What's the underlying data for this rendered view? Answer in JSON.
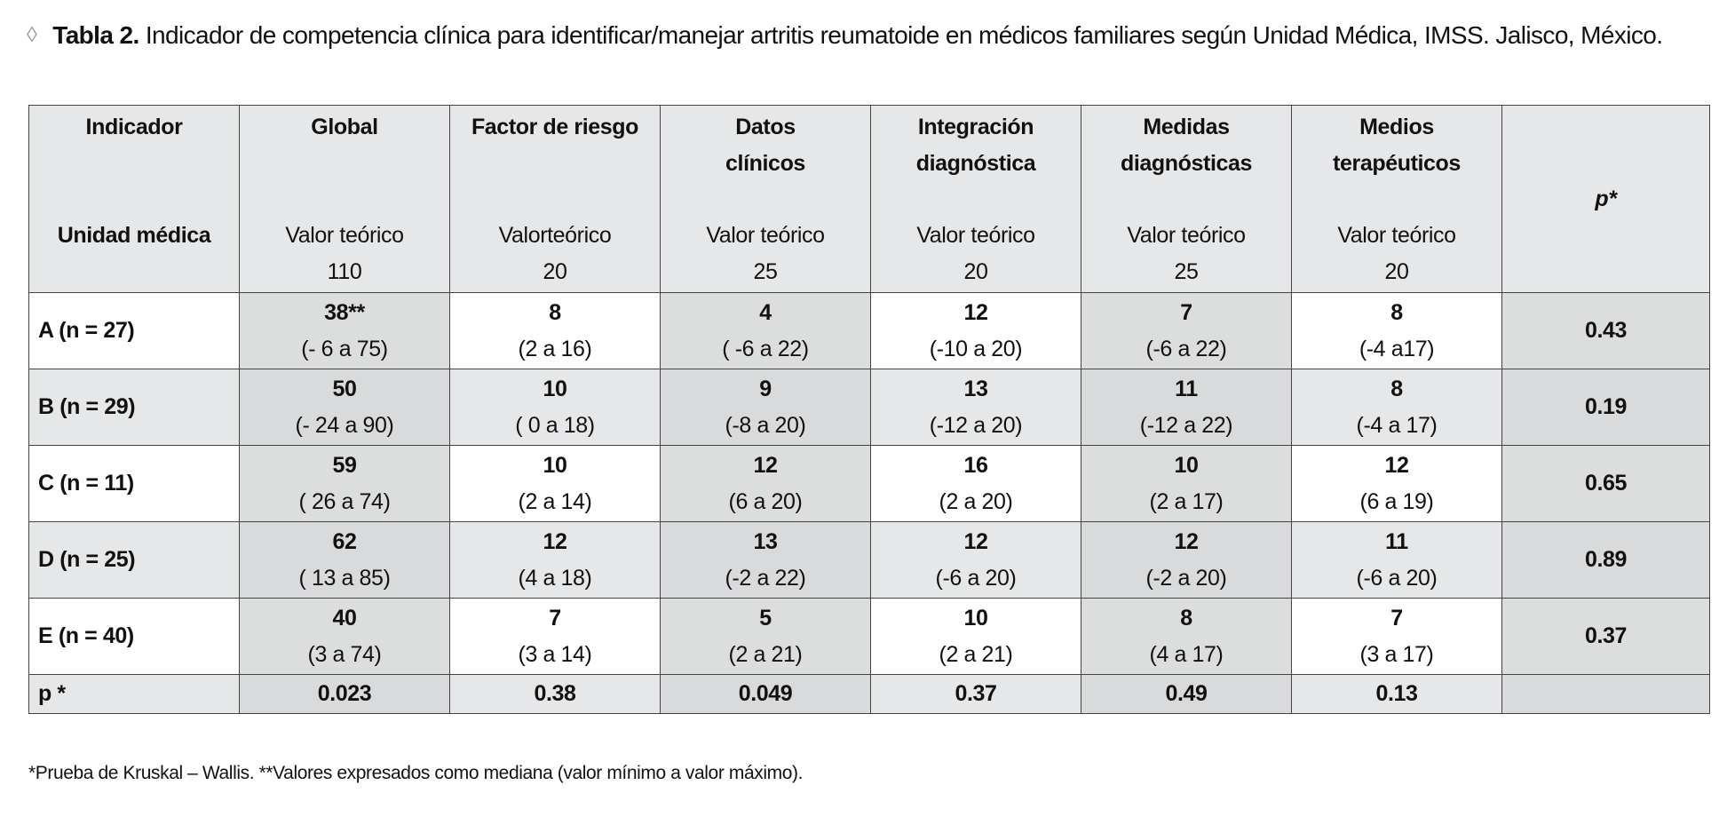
{
  "caption": {
    "bullet": "◊",
    "label": "Tabla 2.",
    "text": "Indicador de competencia clínica para identificar/manejar artritis reumatoide en médicos familiares según Unidad Médica, IMSS. Jalisco, México."
  },
  "table": {
    "header": {
      "indicador": "Indicador",
      "unidad": "Unidad médica",
      "p": "p*",
      "columns": [
        {
          "name": "Global",
          "theo_label": "Valor teórico",
          "theo_value": "110"
        },
        {
          "name": "Factor de riesgo",
          "theo_label": "Valorteórico",
          "theo_value": "20"
        },
        {
          "name": "Datos\nclínicos",
          "theo_label": "Valor teórico",
          "theo_value": "25"
        },
        {
          "name": "Integración\ndiagnóstica",
          "theo_label": "Valor teórico",
          "theo_value": "20"
        },
        {
          "name": "Medidas\ndiagnósticas",
          "theo_label": "Valor teórico",
          "theo_value": "25"
        },
        {
          "name": "Medios\nterapéuticos",
          "theo_label": "Valor teórico",
          "theo_value": "20"
        }
      ]
    },
    "rows": [
      {
        "label": "A (n = 27)",
        "cells": [
          {
            "value": "38**",
            "range": "(- 6 a 75)"
          },
          {
            "value": "8",
            "range": "(2 a 16)"
          },
          {
            "value": "4",
            "range": "( -6 a 22)"
          },
          {
            "value": "12",
            "range": "(-10 a 20)"
          },
          {
            "value": "7",
            "range": "(-6 a 22)"
          },
          {
            "value": "8",
            "range": "(-4 a17)"
          }
        ],
        "p": "0.43"
      },
      {
        "label": "B (n = 29)",
        "cells": [
          {
            "value": "50",
            "range": "(- 24 a 90)"
          },
          {
            "value": "10",
            "range": "( 0 a 18)"
          },
          {
            "value": "9",
            "range": "(-8 a 20)"
          },
          {
            "value": "13",
            "range": "(-12 a 20)"
          },
          {
            "value": "11",
            "range": "(-12 a 22)"
          },
          {
            "value": "8",
            "range": "(-4 a 17)"
          }
        ],
        "p": "0.19"
      },
      {
        "label": "C (n = 11)",
        "cells": [
          {
            "value": "59",
            "range": "( 26 a 74)"
          },
          {
            "value": "10",
            "range": "(2 a 14)"
          },
          {
            "value": "12",
            "range": "(6 a 20)"
          },
          {
            "value": "16",
            "range": "(2 a 20)"
          },
          {
            "value": "10",
            "range": "(2 a 17)"
          },
          {
            "value": "12",
            "range": "(6 a 19)"
          }
        ],
        "p": "0.65"
      },
      {
        "label": "D (n = 25)",
        "cells": [
          {
            "value": "62",
            "range": "( 13 a 85)"
          },
          {
            "value": "12",
            "range": "(4 a 18)"
          },
          {
            "value": "13",
            "range": "(-2 a 22)"
          },
          {
            "value": "12",
            "range": "(-6 a 20)"
          },
          {
            "value": "12",
            "range": "(-2 a 20)"
          },
          {
            "value": "11",
            "range": "(-6 a 20)"
          }
        ],
        "p": "0.89"
      },
      {
        "label": "E (n = 40)",
        "cells": [
          {
            "value": "40",
            "range": "(3 a 74)"
          },
          {
            "value": "7",
            "range": "(3 a 14)"
          },
          {
            "value": "5",
            "range": "(2 a 21)"
          },
          {
            "value": "10",
            "range": "(2 a 21)"
          },
          {
            "value": "8",
            "range": "(4 a 17)"
          },
          {
            "value": "7",
            "range": "(3 a 17)"
          }
        ],
        "p": "0.37"
      }
    ],
    "p_row": {
      "label": "p *",
      "values": [
        "0.023",
        "0.38",
        "0.049",
        "0.37",
        "0.49",
        "0.13"
      ],
      "p": ""
    }
  },
  "footnote": "*Prueba de Kruskal – Wallis. **Valores expresados como mediana (valor mínimo a valor máximo)."
}
